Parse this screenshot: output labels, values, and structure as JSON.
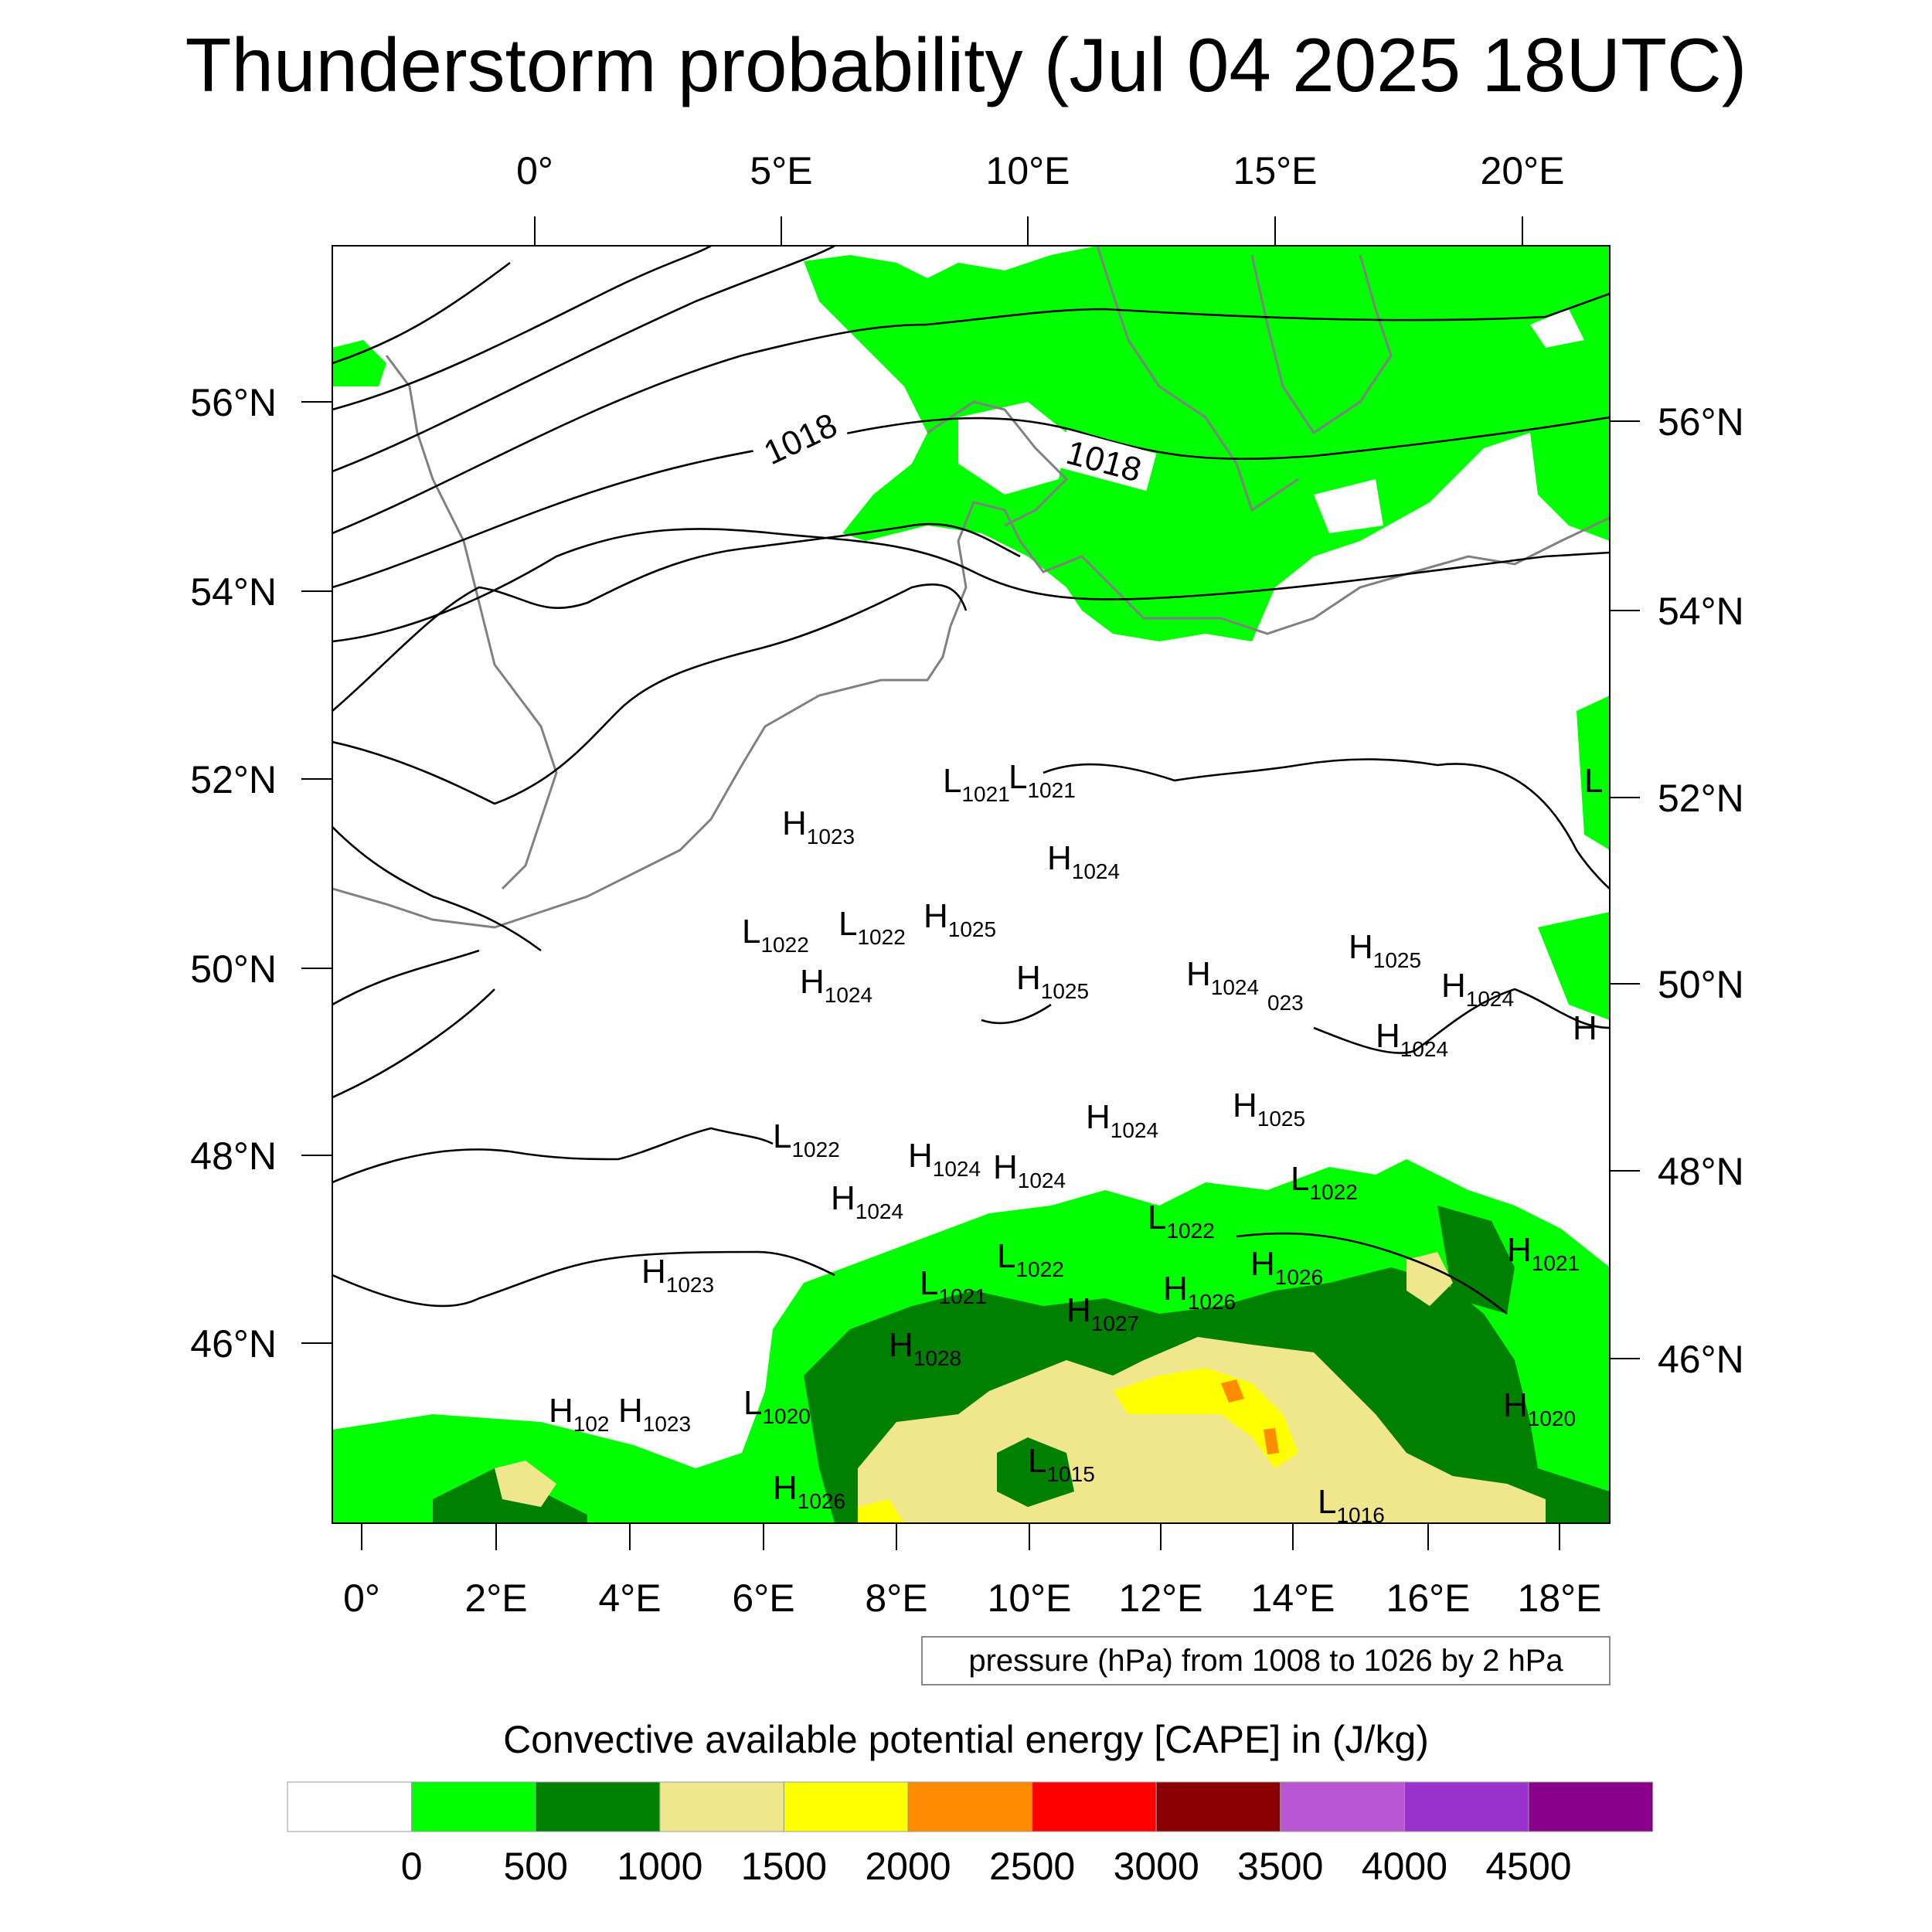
{
  "title": "Thunderstorm probability (Jul 04 2025 18UTC)",
  "top_lon_labels": [
    "0°",
    "5°E",
    "10°E",
    "15°E",
    "20°E"
  ],
  "bottom_lon_labels": [
    "0°",
    "2°E",
    "4°E",
    "6°E",
    "8°E",
    "10°E",
    "12°E",
    "14°E",
    "16°E",
    "18°E"
  ],
  "left_lat_labels": [
    "56°N",
    "54°N",
    "52°N",
    "50°N",
    "48°N",
    "46°N"
  ],
  "right_lat_labels": [
    "56°N",
    "54°N",
    "52°N",
    "50°N",
    "48°N",
    "46°N"
  ],
  "isobar_labels": [
    "1018",
    "1018"
  ],
  "pressure_centers": [
    {
      "t": "L",
      "n": "1021"
    },
    {
      "t": "L",
      "n": "1021"
    },
    {
      "t": "H",
      "n": "1023"
    },
    {
      "t": "H",
      "n": "1024"
    },
    {
      "t": "L",
      "n": "1022"
    },
    {
      "t": "L",
      "n": "1022"
    },
    {
      "t": "H",
      "n": "1025"
    },
    {
      "t": "H",
      "n": "1024"
    },
    {
      "t": "H",
      "n": "1025"
    },
    {
      "t": "H",
      "n": "1024"
    },
    {
      "t": "",
      "n": "023"
    },
    {
      "t": "H",
      "n": "1025"
    },
    {
      "t": "H",
      "n": "1024"
    },
    {
      "t": "H",
      "n": "1024"
    },
    {
      "t": "H",
      "n": "1024"
    },
    {
      "t": "H",
      "n": "1025"
    },
    {
      "t": "L",
      "n": "1022"
    },
    {
      "t": "H",
      "n": "1024"
    },
    {
      "t": "H",
      "n": "1024"
    },
    {
      "t": "H",
      "n": "1024"
    },
    {
      "t": "L",
      "n": "1022"
    },
    {
      "t": "L",
      "n": "1022"
    },
    {
      "t": "H",
      "n": "1023"
    },
    {
      "t": "L",
      "n": "1022"
    },
    {
      "t": "H",
      "n": "1026"
    },
    {
      "t": "L",
      "n": "1021"
    },
    {
      "t": "H",
      "n": "1026"
    },
    {
      "t": "H",
      "n": "1027"
    },
    {
      "t": "H",
      "n": "1021"
    },
    {
      "t": "H",
      "n": "1028"
    },
    {
      "t": "H",
      "n": "102"
    },
    {
      "t": "H",
      "n": "1023"
    },
    {
      "t": "L",
      "n": "1020"
    },
    {
      "t": "H",
      "n": "1020"
    },
    {
      "t": "L",
      "n": "1015"
    },
    {
      "t": "H",
      "n": "1026"
    },
    {
      "t": "L",
      "n": "1016"
    },
    {
      "t": "L",
      "n": ""
    },
    {
      "t": "H",
      "n": ""
    }
  ],
  "contour_info": "pressure (hPa) from 1008 to 1026 by 2 hPa",
  "colorbar": {
    "title": "Convective available potential energy [CAPE] in (J/kg)",
    "colors": [
      "#ffffff",
      "#00ff00",
      "#008000",
      "#f0e68c",
      "#ffff00",
      "#ff8c00",
      "#ff0000",
      "#8b0000",
      "#ba55d3",
      "#9932cc",
      "#8b008b"
    ],
    "labels": [
      "0",
      "500",
      "1000",
      "1500",
      "2000",
      "2500",
      "3000",
      "3500",
      "4000",
      "4500"
    ]
  }
}
